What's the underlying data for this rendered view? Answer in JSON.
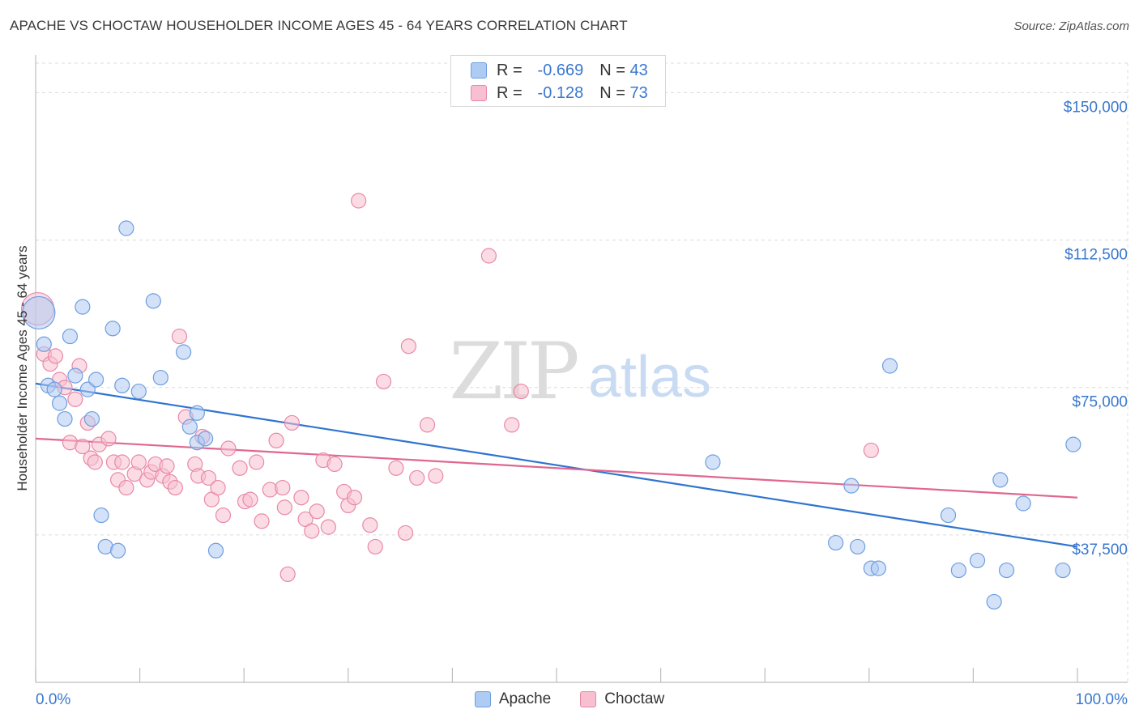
{
  "title": "APACHE VS CHOCTAW HOUSEHOLDER INCOME AGES 45 - 64 YEARS CORRELATION CHART",
  "source": "Source: ZipAtlas.com",
  "watermark": {
    "zip": "ZIP",
    "atlas": "atlas"
  },
  "legend_top": {
    "apache": {
      "r_label": "R =",
      "r_value": "-0.669",
      "n_label": "N =",
      "n_value": "43"
    },
    "choctaw": {
      "r_label": "R =",
      "r_value": "-0.128",
      "n_label": "N =",
      "n_value": "73"
    }
  },
  "legend_bottom": {
    "apache": "Apache",
    "choctaw": "Choctaw"
  },
  "colors": {
    "apache_fill": "#aecbf3",
    "apache_stroke": "#6e9edf",
    "apache_line": "#2f74d0",
    "choctaw_fill": "#f7bfd0",
    "choctaw_stroke": "#e888a8",
    "choctaw_line": "#e06690",
    "tick_label": "#3a78cf",
    "grid": "#dcdcdc"
  },
  "chart_data": {
    "type": "scatter",
    "title": "APACHE VS CHOCTAW HOUSEHOLDER INCOME AGES 45 - 64 YEARS CORRELATION CHART",
    "xlabel": "",
    "ylabel": "Householder Income Ages 45 - 64 years",
    "xlim": [
      0,
      100
    ],
    "ylim": [
      0,
      157500
    ],
    "x_tick_labels": [
      "0.0%",
      "100.0%"
    ],
    "y_ticks": [
      37500,
      75000,
      112500,
      150000
    ],
    "y_tick_labels": [
      "$37,500",
      "$75,000",
      "$112,500",
      "$150,000"
    ],
    "grid": true,
    "legend_position": "top-center",
    "series": [
      {
        "name": "Apache",
        "R": -0.669,
        "N": 43,
        "trend": [
          [
            0,
            76000
          ],
          [
            100,
            34500
          ]
        ],
        "points": [
          [
            0.3,
            94000,
            "large"
          ],
          [
            0.8,
            86000
          ],
          [
            1.2,
            75500
          ],
          [
            1.8,
            74500
          ],
          [
            2.3,
            71000
          ],
          [
            2.8,
            67000
          ],
          [
            3.3,
            88000
          ],
          [
            3.8,
            78000
          ],
          [
            4.5,
            95500
          ],
          [
            5.0,
            74500
          ],
          [
            5.4,
            67000
          ],
          [
            5.8,
            77000
          ],
          [
            6.3,
            42500
          ],
          [
            6.7,
            34500
          ],
          [
            7.4,
            90000
          ],
          [
            7.9,
            33500
          ],
          [
            8.3,
            75500
          ],
          [
            8.7,
            115500
          ],
          [
            9.9,
            74000
          ],
          [
            11.3,
            97000
          ],
          [
            12.0,
            77500
          ],
          [
            14.2,
            84000
          ],
          [
            14.8,
            65000
          ],
          [
            15.5,
            61000
          ],
          [
            15.5,
            68500
          ],
          [
            16.3,
            62000
          ],
          [
            17.3,
            33500
          ],
          [
            65.0,
            56000
          ],
          [
            76.8,
            35500
          ],
          [
            78.3,
            50000
          ],
          [
            78.9,
            34500
          ],
          [
            80.2,
            29000
          ],
          [
            80.9,
            29000
          ],
          [
            82.0,
            80500
          ],
          [
            87.6,
            42500
          ],
          [
            88.6,
            28500
          ],
          [
            90.4,
            31000
          ],
          [
            92.0,
            20500
          ],
          [
            92.6,
            51500
          ],
          [
            93.2,
            28500
          ],
          [
            94.8,
            45500
          ],
          [
            98.6,
            28500
          ],
          [
            99.6,
            60500
          ]
        ]
      },
      {
        "name": "Choctaw",
        "R": -0.128,
        "N": 73,
        "trend": [
          [
            0,
            62000
          ],
          [
            100,
            47000
          ]
        ],
        "points": [
          [
            0.2,
            95000,
            "large"
          ],
          [
            0.8,
            83500
          ],
          [
            1.4,
            81000
          ],
          [
            1.9,
            83000
          ],
          [
            2.3,
            77000
          ],
          [
            2.8,
            75000
          ],
          [
            3.3,
            61000
          ],
          [
            3.8,
            72000
          ],
          [
            4.2,
            80500
          ],
          [
            4.5,
            60000
          ],
          [
            5.0,
            66000
          ],
          [
            5.3,
            57000
          ],
          [
            5.7,
            56000
          ],
          [
            6.1,
            60500
          ],
          [
            7.0,
            62000
          ],
          [
            7.5,
            56000
          ],
          [
            7.9,
            51500
          ],
          [
            8.3,
            56000
          ],
          [
            8.7,
            49500
          ],
          [
            9.5,
            53000
          ],
          [
            9.9,
            56000
          ],
          [
            10.7,
            51500
          ],
          [
            11.1,
            53500
          ],
          [
            11.5,
            55500
          ],
          [
            12.2,
            52500
          ],
          [
            12.6,
            55000
          ],
          [
            12.9,
            51000
          ],
          [
            13.4,
            49500
          ],
          [
            13.8,
            88000
          ],
          [
            14.4,
            67500
          ],
          [
            15.3,
            55500
          ],
          [
            15.6,
            52500
          ],
          [
            16.0,
            62500
          ],
          [
            16.6,
            52000
          ],
          [
            16.9,
            46500
          ],
          [
            17.5,
            49500
          ],
          [
            18.0,
            42500
          ],
          [
            18.5,
            59500
          ],
          [
            19.6,
            54500
          ],
          [
            20.1,
            46000
          ],
          [
            20.6,
            46500
          ],
          [
            21.2,
            56000
          ],
          [
            21.7,
            41000
          ],
          [
            22.5,
            49000
          ],
          [
            23.1,
            61500
          ],
          [
            23.7,
            49500
          ],
          [
            23.9,
            44500
          ],
          [
            24.2,
            27500
          ],
          [
            24.6,
            66000
          ],
          [
            25.5,
            47000
          ],
          [
            25.9,
            41500
          ],
          [
            26.5,
            38500
          ],
          [
            27.0,
            43500
          ],
          [
            27.6,
            56500
          ],
          [
            28.1,
            39500
          ],
          [
            28.7,
            55500
          ],
          [
            29.6,
            48500
          ],
          [
            30.0,
            45000
          ],
          [
            30.6,
            47000
          ],
          [
            31.0,
            122500
          ],
          [
            32.1,
            40000
          ],
          [
            32.6,
            34500
          ],
          [
            33.4,
            76500
          ],
          [
            34.6,
            54500
          ],
          [
            35.5,
            38000
          ],
          [
            35.8,
            85500
          ],
          [
            36.6,
            52000
          ],
          [
            37.6,
            65500
          ],
          [
            38.4,
            52500
          ],
          [
            43.5,
            108500
          ],
          [
            45.7,
            65500
          ],
          [
            46.6,
            74000
          ],
          [
            80.2,
            59000
          ]
        ]
      }
    ]
  }
}
